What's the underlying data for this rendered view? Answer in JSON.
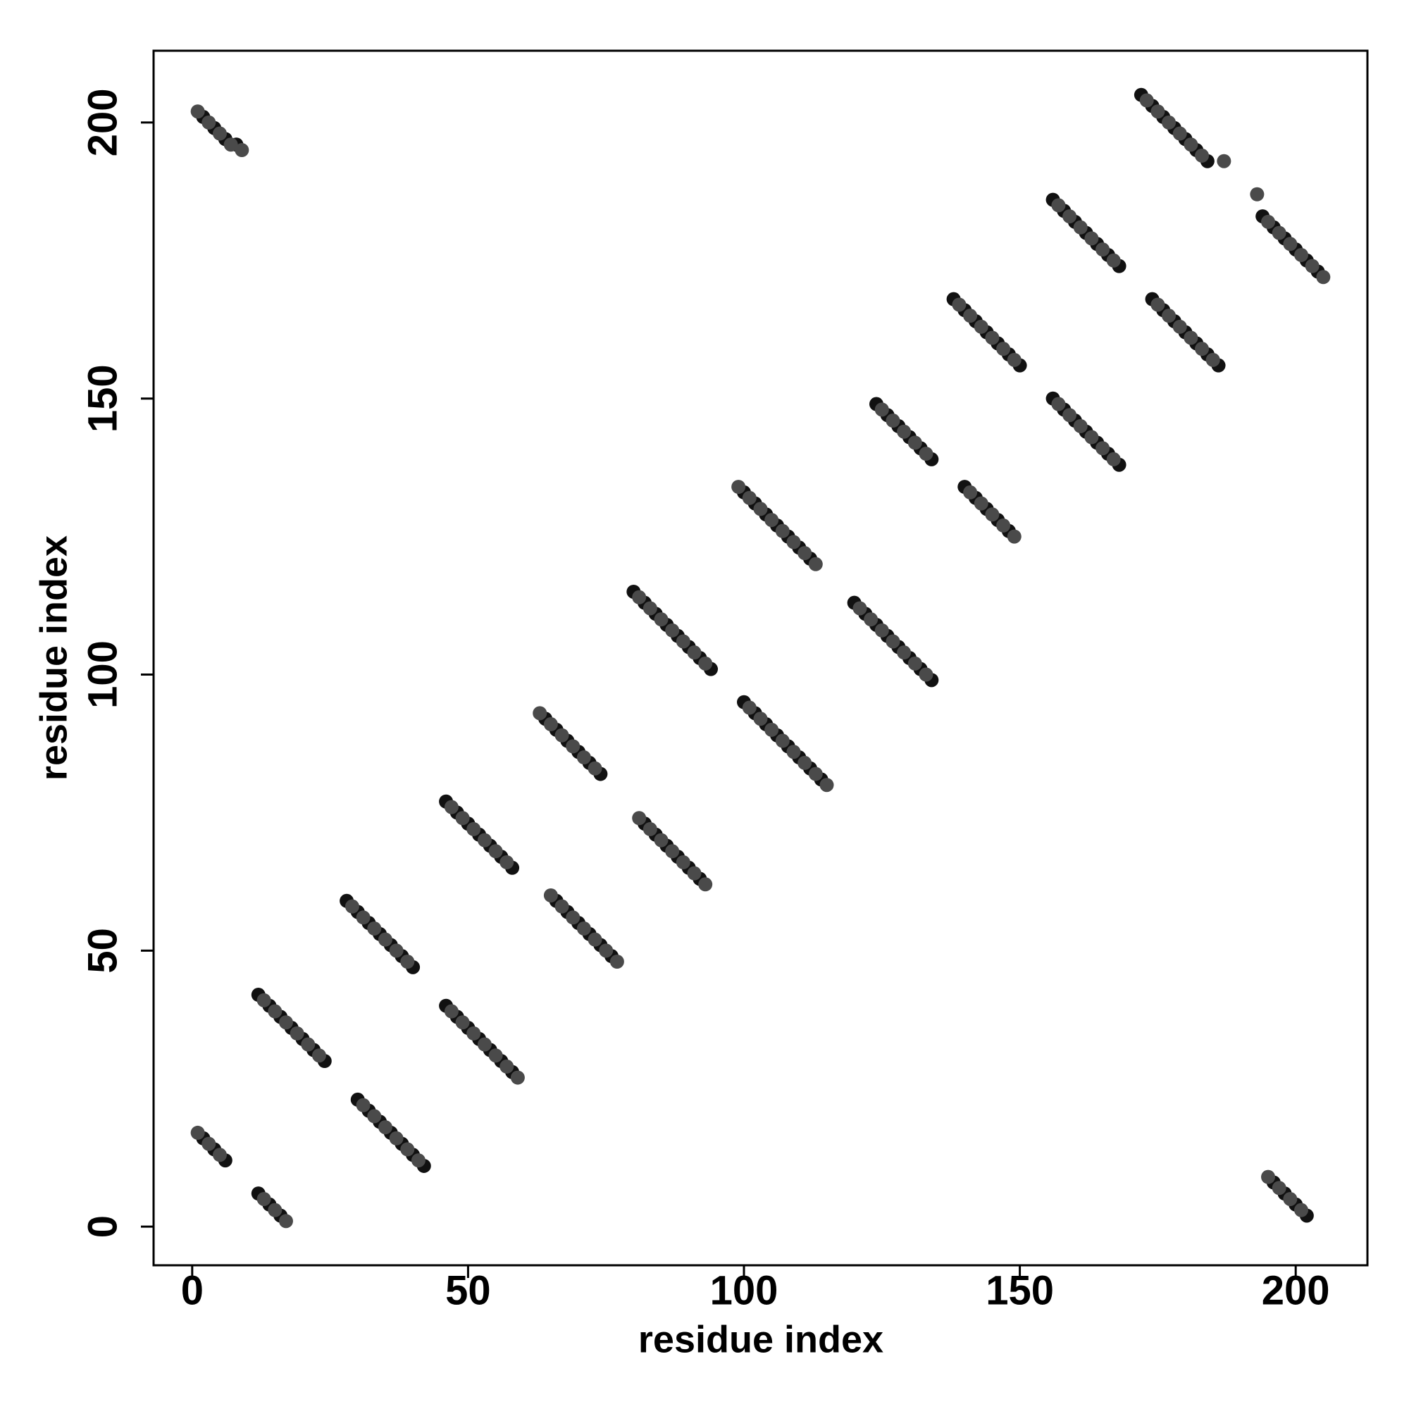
{
  "chart_data": {
    "type": "scatter",
    "xlabel": "residue index",
    "ylabel": "residue index",
    "xlim": [
      -7,
      213
    ],
    "ylim": [
      -7,
      213
    ],
    "xticks": [
      0,
      50,
      100,
      150,
      200
    ],
    "yticks": [
      0,
      50,
      100,
      150,
      200
    ],
    "grid": false,
    "series": [
      {
        "color": "#111111",
        "x": [
          2,
          4,
          6,
          8,
          2,
          4,
          6,
          12,
          14,
          16,
          12,
          14,
          16,
          18,
          20,
          22,
          24,
          28,
          30,
          32,
          34,
          36,
          38,
          40,
          30,
          32,
          34,
          36,
          38,
          40,
          42,
          46,
          48,
          50,
          52,
          54,
          56,
          58,
          46,
          48,
          50,
          52,
          54,
          56,
          58,
          64,
          66,
          68,
          70,
          72,
          74,
          66,
          68,
          70,
          72,
          74,
          76,
          80,
          82,
          84,
          86,
          88,
          90,
          92,
          94,
          82,
          84,
          86,
          88,
          90,
          92,
          100,
          102,
          104,
          106,
          108,
          110,
          112,
          100,
          102,
          104,
          106,
          108,
          110,
          112,
          114,
          120,
          122,
          124,
          126,
          128,
          130,
          132,
          134,
          124,
          126,
          128,
          130,
          132,
          134,
          140,
          142,
          144,
          146,
          148,
          138,
          140,
          142,
          144,
          146,
          148,
          150,
          156,
          158,
          160,
          162,
          164,
          166,
          168,
          156,
          158,
          160,
          162,
          164,
          166,
          168,
          174,
          176,
          178,
          180,
          182,
          184,
          186,
          172,
          174,
          176,
          178,
          180,
          182,
          184,
          194,
          196,
          198,
          200,
          202,
          204,
          196,
          198,
          200,
          202
        ],
        "values": [
          201,
          199,
          197,
          196,
          16,
          14,
          12,
          6,
          4,
          2,
          42,
          40,
          38,
          36,
          34,
          32,
          30,
          59,
          57,
          55,
          53,
          51,
          49,
          47,
          23,
          21,
          19,
          17,
          15,
          13,
          11,
          40,
          38,
          36,
          34,
          32,
          30,
          28,
          77,
          75,
          73,
          71,
          69,
          67,
          65,
          92,
          90,
          88,
          86,
          84,
          82,
          59,
          57,
          55,
          53,
          51,
          49,
          115,
          113,
          111,
          109,
          107,
          105,
          103,
          101,
          73,
          71,
          69,
          67,
          65,
          63,
          133,
          131,
          129,
          127,
          125,
          123,
          121,
          95,
          93,
          91,
          89,
          87,
          85,
          83,
          81,
          113,
          111,
          109,
          107,
          105,
          103,
          101,
          99,
          149,
          147,
          145,
          143,
          141,
          139,
          134,
          132,
          130,
          128,
          126,
          168,
          166,
          164,
          162,
          160,
          158,
          156,
          186,
          184,
          182,
          180,
          178,
          176,
          174,
          150,
          148,
          146,
          144,
          142,
          140,
          138,
          168,
          166,
          164,
          162,
          160,
          158,
          156,
          205,
          203,
          201,
          199,
          197,
          195,
          193,
          183,
          181,
          179,
          177,
          175,
          173,
          8,
          6,
          4,
          2
        ]
      },
      {
        "color": "#4a4a4a",
        "x": [
          1,
          3,
          5,
          7,
          9,
          1,
          3,
          5,
          13,
          15,
          17,
          13,
          15,
          17,
          19,
          21,
          23,
          29,
          31,
          33,
          35,
          37,
          39,
          31,
          33,
          35,
          37,
          39,
          41,
          47,
          49,
          51,
          53,
          55,
          57,
          59,
          47,
          49,
          51,
          53,
          55,
          57,
          63,
          65,
          67,
          69,
          71,
          73,
          65,
          67,
          69,
          71,
          73,
          75,
          77,
          81,
          83,
          85,
          87,
          89,
          91,
          93,
          81,
          83,
          85,
          87,
          89,
          91,
          93,
          99,
          101,
          103,
          105,
          107,
          109,
          111,
          113,
          101,
          103,
          105,
          107,
          109,
          111,
          113,
          115,
          121,
          123,
          125,
          127,
          129,
          131,
          133,
          125,
          127,
          129,
          131,
          133,
          141,
          143,
          145,
          147,
          149,
          139,
          141,
          143,
          145,
          147,
          149,
          157,
          159,
          161,
          163,
          165,
          167,
          157,
          159,
          161,
          163,
          165,
          167,
          175,
          177,
          179,
          181,
          183,
          185,
          173,
          175,
          177,
          179,
          181,
          183,
          187,
          193,
          195,
          197,
          199,
          201,
          203,
          205,
          195,
          197,
          199,
          201
        ],
        "values": [
          202,
          200,
          198,
          196,
          195,
          17,
          15,
          13,
          5,
          3,
          1,
          41,
          39,
          37,
          35,
          33,
          31,
          58,
          56,
          54,
          52,
          50,
          48,
          22,
          20,
          18,
          16,
          14,
          12,
          39,
          37,
          35,
          33,
          31,
          29,
          27,
          76,
          74,
          72,
          70,
          68,
          66,
          93,
          91,
          89,
          87,
          85,
          83,
          60,
          58,
          56,
          54,
          52,
          50,
          48,
          114,
          112,
          110,
          108,
          106,
          104,
          102,
          74,
          72,
          70,
          68,
          66,
          64,
          62,
          134,
          132,
          130,
          128,
          126,
          124,
          122,
          120,
          94,
          92,
          90,
          88,
          86,
          84,
          82,
          80,
          112,
          110,
          108,
          106,
          104,
          102,
          100,
          148,
          146,
          144,
          142,
          140,
          133,
          131,
          129,
          127,
          125,
          167,
          165,
          163,
          161,
          159,
          157,
          185,
          183,
          181,
          179,
          177,
          175,
          149,
          147,
          145,
          143,
          141,
          139,
          167,
          165,
          163,
          161,
          159,
          157,
          204,
          202,
          200,
          198,
          196,
          194,
          193,
          187,
          182,
          180,
          178,
          176,
          174,
          172,
          9,
          7,
          5,
          3
        ]
      }
    ]
  }
}
